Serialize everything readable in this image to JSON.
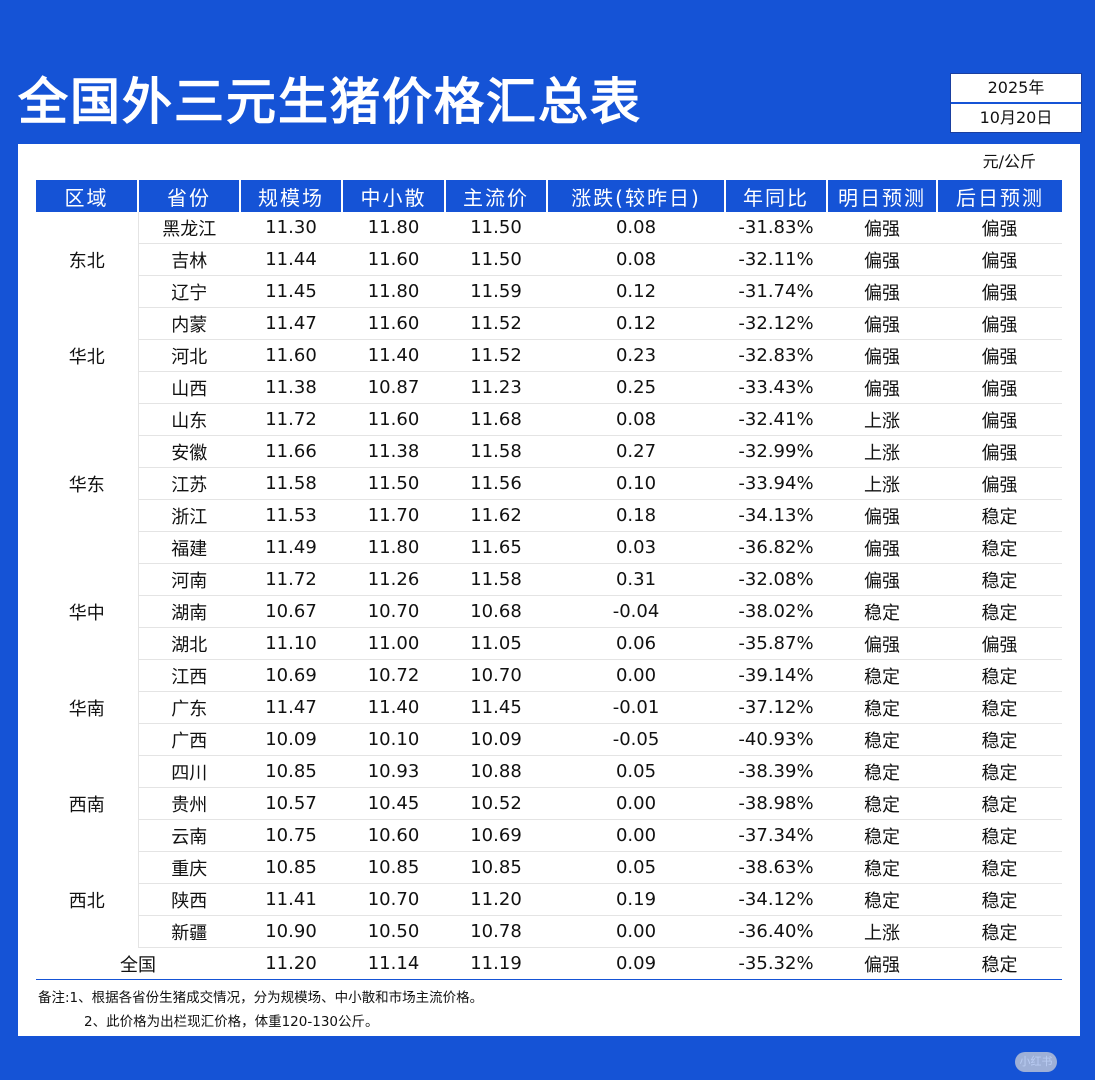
{
  "title": "全国外三元生猪价格汇总表",
  "date": {
    "year": "2025年",
    "day": "10月20日"
  },
  "unit": "元/公斤",
  "colors": {
    "up": "#e0203c",
    "down": "#17c23a",
    "header": "#1553d6"
  },
  "headers": [
    "区域",
    "省份",
    "规模场",
    "中小散",
    "主流价",
    "涨跌(较昨日)",
    "年同比",
    "明日预测",
    "后日预测"
  ],
  "regions": [
    {
      "name": "东北",
      "rows": [
        {
          "province": "黑龙江",
          "large": "11.30",
          "small": "11.80",
          "main": "11.50",
          "change": "0.08",
          "yoy": "-31.83%",
          "tomorrow": "偏强",
          "after": "偏强"
        },
        {
          "province": "吉林",
          "large": "11.44",
          "small": "11.60",
          "main": "11.50",
          "change": "0.08",
          "yoy": "-32.11%",
          "tomorrow": "偏强",
          "after": "偏强"
        },
        {
          "province": "辽宁",
          "large": "11.45",
          "small": "11.80",
          "main": "11.59",
          "change": "0.12",
          "yoy": "-31.74%",
          "tomorrow": "偏强",
          "after": "偏强"
        }
      ]
    },
    {
      "name": "华北",
      "rows": [
        {
          "province": "内蒙",
          "large": "11.47",
          "small": "11.60",
          "main": "11.52",
          "change": "0.12",
          "yoy": "-32.12%",
          "tomorrow": "偏强",
          "after": "偏强"
        },
        {
          "province": "河北",
          "large": "11.60",
          "small": "11.40",
          "main": "11.52",
          "change": "0.23",
          "yoy": "-32.83%",
          "tomorrow": "偏强",
          "after": "偏强"
        },
        {
          "province": "山西",
          "large": "11.38",
          "small": "10.87",
          "main": "11.23",
          "change": "0.25",
          "yoy": "-33.43%",
          "tomorrow": "偏强",
          "after": "偏强"
        }
      ]
    },
    {
      "name": "华东",
      "rows": [
        {
          "province": "山东",
          "large": "11.72",
          "small": "11.60",
          "main": "11.68",
          "change": "0.08",
          "yoy": "-32.41%",
          "tomorrow": "上涨",
          "after": "偏强"
        },
        {
          "province": "安徽",
          "large": "11.66",
          "small": "11.38",
          "main": "11.58",
          "change": "0.27",
          "yoy": "-32.99%",
          "tomorrow": "上涨",
          "after": "偏强"
        },
        {
          "province": "江苏",
          "large": "11.58",
          "small": "11.50",
          "main": "11.56",
          "change": "0.10",
          "yoy": "-33.94%",
          "tomorrow": "上涨",
          "after": "偏强"
        },
        {
          "province": "浙江",
          "large": "11.53",
          "small": "11.70",
          "main": "11.62",
          "change": "0.18",
          "yoy": "-34.13%",
          "tomorrow": "偏强",
          "after": "稳定"
        },
        {
          "province": "福建",
          "large": "11.49",
          "small": "11.80",
          "main": "11.65",
          "change": "0.03",
          "yoy": "-36.82%",
          "tomorrow": "偏强",
          "after": "稳定"
        }
      ]
    },
    {
      "name": "华中",
      "rows": [
        {
          "province": "河南",
          "large": "11.72",
          "small": "11.26",
          "main": "11.58",
          "change": "0.31",
          "yoy": "-32.08%",
          "tomorrow": "偏强",
          "after": "稳定"
        },
        {
          "province": "湖南",
          "large": "10.67",
          "small": "10.70",
          "main": "10.68",
          "change": "-0.04",
          "yoy": "-38.02%",
          "tomorrow": "稳定",
          "after": "稳定"
        },
        {
          "province": "湖北",
          "large": "11.10",
          "small": "11.00",
          "main": "11.05",
          "change": "0.06",
          "yoy": "-35.87%",
          "tomorrow": "偏强",
          "after": "偏强"
        }
      ]
    },
    {
      "name": "华南",
      "rows": [
        {
          "province": "江西",
          "large": "10.69",
          "small": "10.72",
          "main": "10.70",
          "change": "0.00",
          "yoy": "-39.14%",
          "tomorrow": "稳定",
          "after": "稳定"
        },
        {
          "province": "广东",
          "large": "11.47",
          "small": "11.40",
          "main": "11.45",
          "change": "-0.01",
          "yoy": "-37.12%",
          "tomorrow": "稳定",
          "after": "稳定"
        },
        {
          "province": "广西",
          "large": "10.09",
          "small": "10.10",
          "main": "10.09",
          "change": "-0.05",
          "yoy": "-40.93%",
          "tomorrow": "稳定",
          "after": "稳定"
        }
      ]
    },
    {
      "name": "西南",
      "rows": [
        {
          "province": "四川",
          "large": "10.85",
          "small": "10.93",
          "main": "10.88",
          "change": "0.05",
          "yoy": "-38.39%",
          "tomorrow": "稳定",
          "after": "稳定"
        },
        {
          "province": "贵州",
          "large": "10.57",
          "small": "10.45",
          "main": "10.52",
          "change": "0.00",
          "yoy": "-38.98%",
          "tomorrow": "稳定",
          "after": "稳定"
        },
        {
          "province": "云南",
          "large": "10.75",
          "small": "10.60",
          "main": "10.69",
          "change": "0.00",
          "yoy": "-37.34%",
          "tomorrow": "稳定",
          "after": "稳定"
        }
      ]
    },
    {
      "name": "西北",
      "rows": [
        {
          "province": "重庆",
          "large": "10.85",
          "small": "10.85",
          "main": "10.85",
          "change": "0.05",
          "yoy": "-38.63%",
          "tomorrow": "稳定",
          "after": "稳定"
        },
        {
          "province": "陕西",
          "large": "11.41",
          "small": "10.70",
          "main": "11.20",
          "change": "0.19",
          "yoy": "-34.12%",
          "tomorrow": "稳定",
          "after": "稳定"
        },
        {
          "province": "新疆",
          "large": "10.90",
          "small": "10.50",
          "main": "10.78",
          "change": "0.00",
          "yoy": "-36.40%",
          "tomorrow": "上涨",
          "after": "稳定"
        }
      ]
    }
  ],
  "national": {
    "label": "全国",
    "large": "11.20",
    "small": "11.14",
    "main": "11.19",
    "change": "0.09",
    "yoy": "-35.32%",
    "tomorrow": "偏强",
    "after": "稳定"
  },
  "notes": [
    "备注:1、根据各省份生猪成交情况，分为规模场、中小散和市场主流价格。",
    "2、此价格为出栏现汇价格，体重120-130公斤。"
  ],
  "watermark": "小红书"
}
